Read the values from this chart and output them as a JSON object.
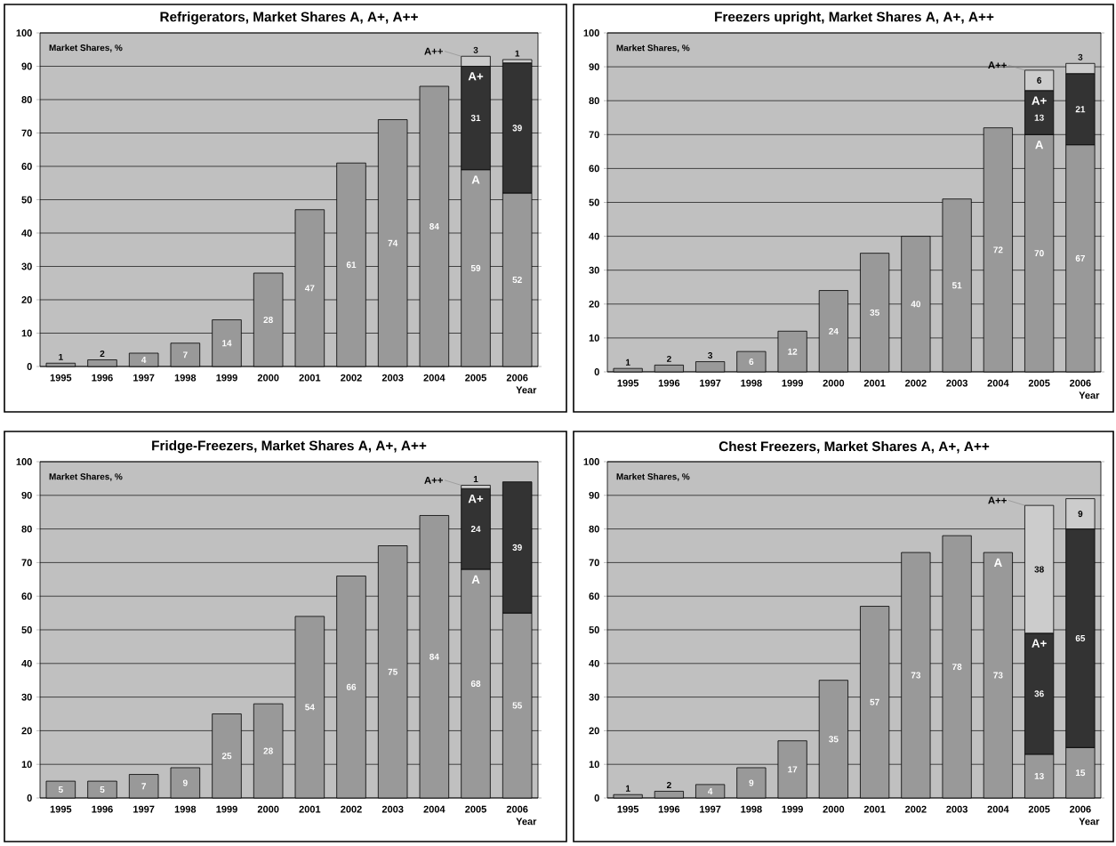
{
  "chart_data": [
    {
      "type": "bar",
      "stacked": true,
      "title": "Refrigerators, Market Shares A, A+, A++",
      "ylabel": "Market Shares, %",
      "xlabel": "Year",
      "categories": [
        "1995",
        "1996",
        "1997",
        "1998",
        "1999",
        "2000",
        "2001",
        "2002",
        "2003",
        "2004",
        "2005",
        "2006"
      ],
      "ylim": [
        0,
        100
      ],
      "yticks": [
        0,
        10,
        20,
        30,
        40,
        50,
        60,
        70,
        80,
        90,
        100
      ],
      "grid": "y",
      "data_labels": true,
      "series": [
        {
          "name": "A",
          "color": "#999999",
          "values": [
            1,
            2,
            4,
            7,
            14,
            28,
            47,
            61,
            74,
            84,
            59,
            52
          ]
        },
        {
          "name": "A+",
          "color": "#333333",
          "values": [
            null,
            null,
            null,
            null,
            null,
            null,
            null,
            null,
            null,
            null,
            31,
            39
          ]
        },
        {
          "name": "A++",
          "color": "#cccccc",
          "values": [
            null,
            null,
            null,
            null,
            null,
            null,
            null,
            null,
            null,
            null,
            3,
            1
          ]
        }
      ]
    },
    {
      "type": "bar",
      "stacked": true,
      "title": "Freezers upright, Market Shares A, A+, A++",
      "ylabel": "Market Shares, %",
      "xlabel": "Year",
      "categories": [
        "1995",
        "1996",
        "1997",
        "1998",
        "1999",
        "2000",
        "2001",
        "2002",
        "2003",
        "2004",
        "2005",
        "2006"
      ],
      "ylim": [
        0,
        100
      ],
      "yticks": [
        0,
        10,
        20,
        30,
        40,
        50,
        60,
        70,
        80,
        90,
        100
      ],
      "grid": "y",
      "data_labels": true,
      "series": [
        {
          "name": "A",
          "color": "#999999",
          "values": [
            1,
            2,
            3,
            6,
            12,
            24,
            35,
            40,
            51,
            72,
            70,
            67
          ]
        },
        {
          "name": "A+",
          "color": "#333333",
          "values": [
            null,
            null,
            null,
            null,
            null,
            null,
            null,
            null,
            null,
            null,
            13,
            21
          ]
        },
        {
          "name": "A++",
          "color": "#cccccc",
          "values": [
            null,
            null,
            null,
            null,
            null,
            null,
            null,
            null,
            null,
            null,
            6,
            3
          ]
        }
      ]
    },
    {
      "type": "bar",
      "stacked": true,
      "title": "Fridge-Freezers, Market Shares A, A+, A++",
      "ylabel": "Market Shares, %",
      "xlabel": "Year",
      "categories": [
        "1995",
        "1996",
        "1997",
        "1998",
        "1999",
        "2000",
        "2001",
        "2002",
        "2003",
        "2004",
        "2005",
        "2006"
      ],
      "ylim": [
        0,
        100
      ],
      "yticks": [
        0,
        10,
        20,
        30,
        40,
        50,
        60,
        70,
        80,
        90,
        100
      ],
      "grid": "y",
      "data_labels": true,
      "series": [
        {
          "name": "A",
          "color": "#999999",
          "values": [
            5,
            5,
            7,
            9,
            25,
            28,
            54,
            66,
            75,
            84,
            68,
            55
          ]
        },
        {
          "name": "A+",
          "color": "#333333",
          "values": [
            null,
            null,
            null,
            null,
            null,
            null,
            null,
            null,
            null,
            null,
            24,
            39
          ]
        },
        {
          "name": "A++",
          "color": "#cccccc",
          "values": [
            null,
            null,
            null,
            null,
            null,
            null,
            null,
            null,
            null,
            null,
            1,
            null
          ]
        }
      ]
    },
    {
      "type": "bar",
      "stacked": true,
      "title": "Chest Freezers, Market Shares A, A+, A++",
      "ylabel": "Market Shares, %",
      "xlabel": "Year",
      "categories": [
        "1995",
        "1996",
        "1997",
        "1998",
        "1999",
        "2000",
        "2001",
        "2002",
        "2003",
        "2004",
        "2005",
        "2006"
      ],
      "ylim": [
        0,
        100
      ],
      "yticks": [
        0,
        10,
        20,
        30,
        40,
        50,
        60,
        70,
        80,
        90,
        100
      ],
      "grid": "y",
      "data_labels": true,
      "series": [
        {
          "name": "A",
          "color": "#999999",
          "values": [
            1,
            2,
            4,
            9,
            17,
            35,
            57,
            73,
            78,
            73,
            13,
            15
          ]
        },
        {
          "name": "A+",
          "color": "#333333",
          "values": [
            null,
            null,
            null,
            null,
            null,
            null,
            null,
            null,
            null,
            null,
            36,
            65
          ]
        },
        {
          "name": "A++",
          "color": "#cccccc",
          "values": [
            null,
            null,
            null,
            null,
            null,
            null,
            null,
            null,
            null,
            null,
            38,
            9
          ]
        }
      ]
    }
  ]
}
